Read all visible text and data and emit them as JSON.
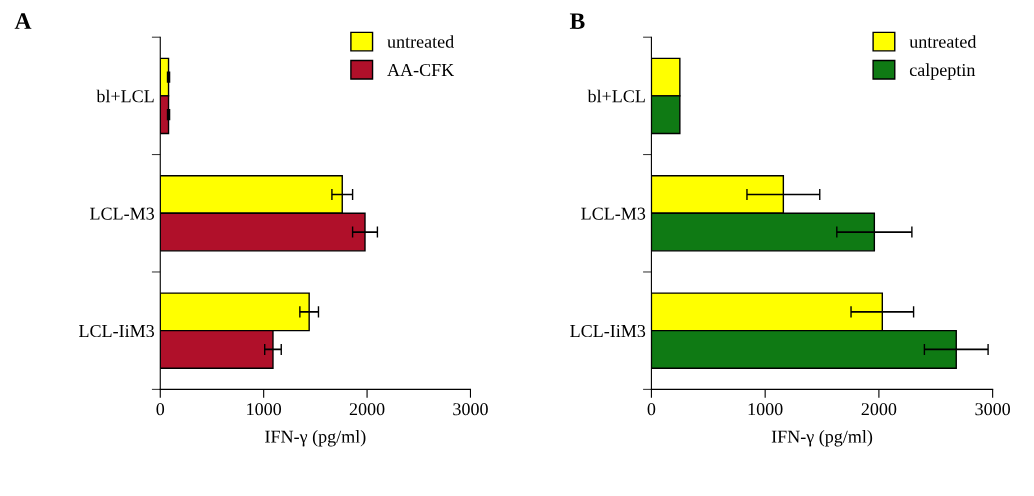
{
  "chart_data": [
    {
      "type": "bar",
      "orientation": "horizontal",
      "title": "A",
      "xlabel": "IFN-γ (pg/ml)",
      "categories": [
        "bl+LCL",
        "LCL-M3",
        "LCL-IiM3"
      ],
      "series": [
        {
          "name": "untreated",
          "color": "#ffff00",
          "values": [
            80,
            1760,
            1440
          ],
          "errors": [
            10,
            100,
            90
          ]
        },
        {
          "name": "AA-CFK",
          "color": "#b0102a",
          "values": [
            80,
            1980,
            1090
          ],
          "errors": [
            10,
            120,
            80
          ]
        }
      ],
      "xlim": [
        0,
        3000
      ],
      "xticks": [
        0,
        1000,
        2000,
        3000
      ],
      "legend": "top right",
      "grid": false
    },
    {
      "type": "bar",
      "orientation": "horizontal",
      "title": "B",
      "xlabel": "IFN-γ (pg/ml)",
      "categories": [
        "bl+LCL",
        "LCL-M3",
        "LCL-IiM3"
      ],
      "series": [
        {
          "name": "untreated",
          "color": "#ffff00",
          "values": [
            250,
            1160,
            2030
          ],
          "errors": [
            null,
            320,
            275
          ]
        },
        {
          "name": "calpeptin",
          "color": "#0f7a14",
          "values": [
            250,
            1960,
            2680
          ],
          "errors": [
            null,
            330,
            280
          ]
        }
      ],
      "xlim": [
        0,
        3000
      ],
      "xticks": [
        0,
        1000,
        2000,
        3000
      ],
      "legend": "top right",
      "grid": false
    }
  ]
}
